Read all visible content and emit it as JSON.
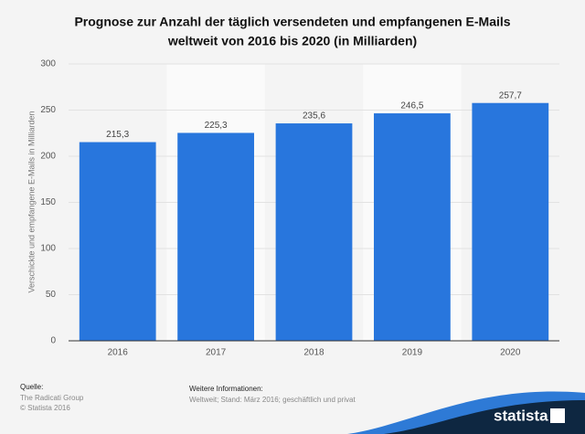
{
  "chart_data": {
    "type": "bar",
    "title": [
      "Prognose zur Anzahl der täglich versendeten und empfangenen E-Mails",
      "weltweit von 2016 bis 2020 (in Milliarden)"
    ],
    "y_label": "Verschickte und empfangene E-Mails in Milliarden",
    "categories": [
      "2016",
      "2017",
      "2018",
      "2019",
      "2020"
    ],
    "values": [
      215.3,
      225.3,
      235.6,
      246.5,
      257.7
    ],
    "value_labels": [
      "215,3",
      "225,3",
      "235,6",
      "246,5",
      "257,7"
    ],
    "color": "#2876dd",
    "ylim": [
      0,
      300
    ],
    "yticks": [
      0,
      50,
      100,
      150,
      200,
      250,
      300
    ],
    "grid": true
  },
  "footer": {
    "source_label": "Quelle:",
    "source": [
      "The Radicati Group",
      "© Statista 2016"
    ],
    "info_label": "Weitere Informationen:",
    "info": "Weltweit; Stand: März 2016; geschäftlich und privat",
    "logo": "statista"
  }
}
